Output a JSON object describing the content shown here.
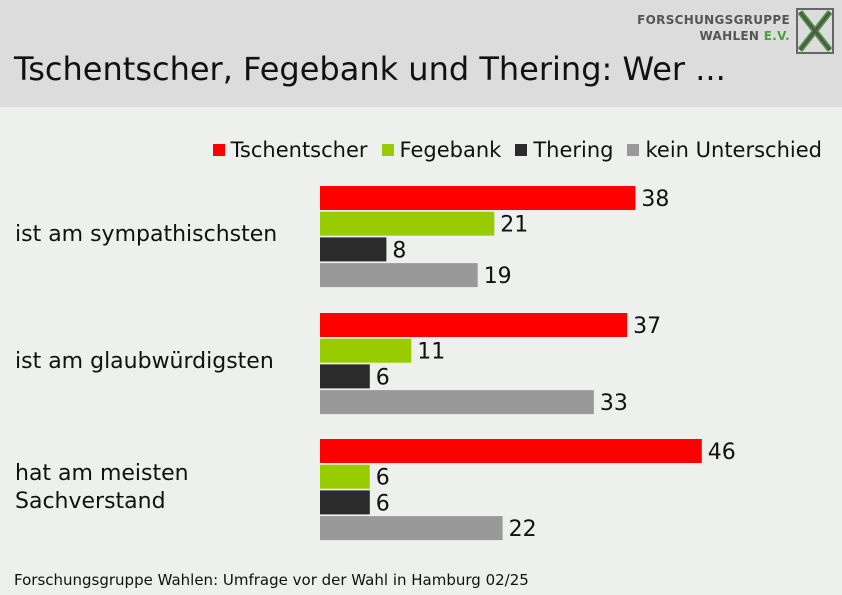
{
  "header": {
    "title": "Tschentscher, Fegebank und Thering: Wer ...",
    "logo_line1": "FORSCHUNGSGRUPPE",
    "logo_line2": "WAHLEN",
    "logo_ev": "E.V."
  },
  "footer": {
    "source": "Forschungsgruppe Wahlen: Umfrage vor der Wahl in Hamburg 02/25"
  },
  "colors": {
    "tschentscher": "#ff0000",
    "fegebank": "#99cc00",
    "thering": "#2b2b2b",
    "kein_unterschied": "#999999"
  },
  "chart_data": {
    "type": "bar",
    "orientation": "horizontal",
    "categories": [
      "ist am sympathischsten",
      "ist am glaubwürdigsten",
      "hat am meisten\nSachverstand"
    ],
    "series": [
      {
        "name": "Tschentscher",
        "values": [
          38,
          37,
          46
        ],
        "color": "#ff0000"
      },
      {
        "name": "Fegebank",
        "values": [
          21,
          11,
          6
        ],
        "color": "#99cc00"
      },
      {
        "name": "Thering",
        "values": [
          8,
          6,
          6
        ],
        "color": "#2b2b2b"
      },
      {
        "name": "kein Unterschied",
        "values": [
          19,
          33,
          22
        ],
        "color": "#999999"
      }
    ],
    "data_labels": true,
    "legend_position": "top-right",
    "grid": false
  }
}
